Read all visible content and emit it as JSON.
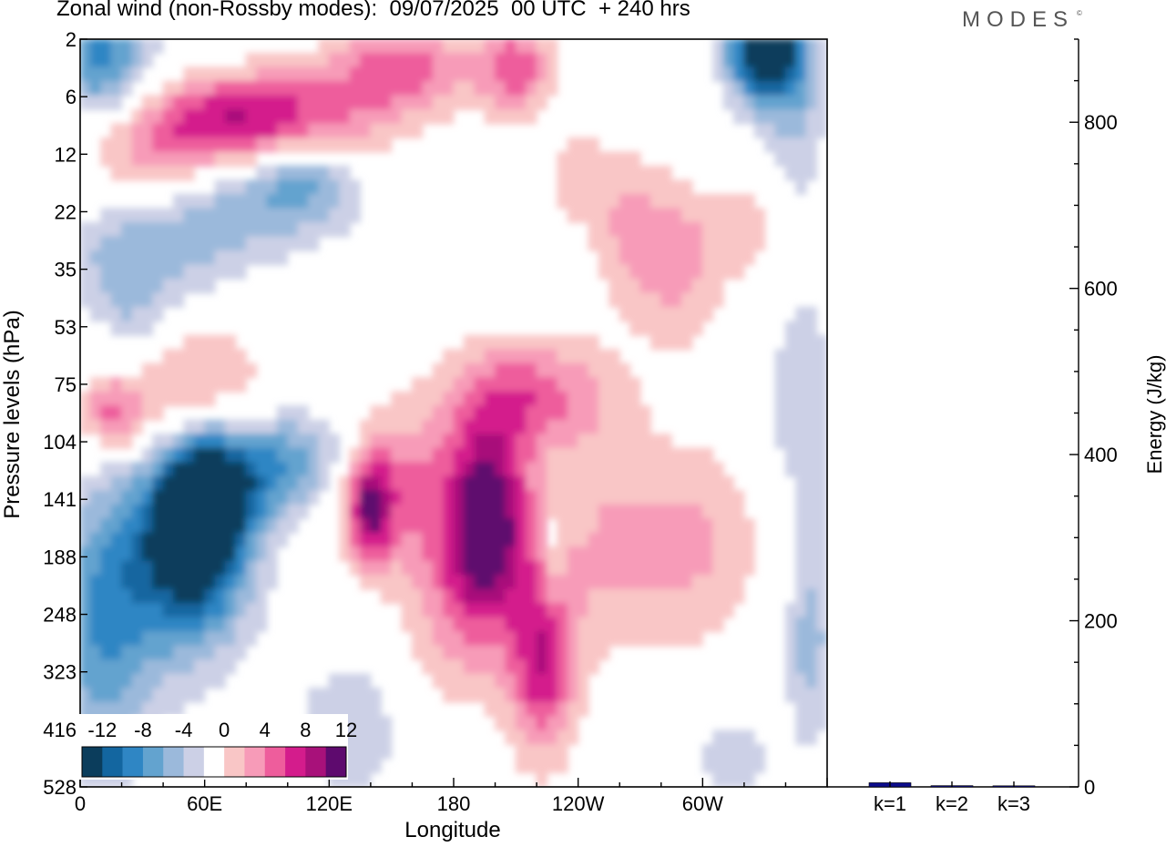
{
  "header": {
    "title": "Zonal wind (non-Rossby modes):  09/07/2025  00 UTC  + 240 hrs",
    "brand": "MODES",
    "brand_mark": "©"
  },
  "chart_data": [
    {
      "type": "heatmap",
      "title": "Zonal wind (non-Rossby modes):  09/07/2025  00 UTC  + 240 hrs",
      "xlabel": "Longitude",
      "ylabel": "Pressure levels (hPa)",
      "x_ticks": [
        "0",
        "60E",
        "120E",
        "180",
        "120W",
        "60W"
      ],
      "x_range_deg": [
        0,
        360
      ],
      "y_ticks": [
        "2",
        "6",
        "12",
        "22",
        "35",
        "53",
        "75",
        "104",
        "141",
        "188",
        "248",
        "323",
        "416",
        "528"
      ],
      "colorbar": {
        "labels": [
          "-12",
          "-8",
          "-4",
          "0",
          "4",
          "8",
          "12"
        ],
        "levels": [
          -14,
          -12,
          -10,
          -8,
          -6,
          -4,
          -2,
          2,
          4,
          6,
          8,
          10,
          12,
          14
        ],
        "colors": [
          "#0b3d5c",
          "#1366a0",
          "#2f86c4",
          "#63a3cf",
          "#9bb9db",
          "#ccd0e6",
          "#ffffff",
          "#f9c6c6",
          "#f79bb8",
          "#ee5d9c",
          "#d41c8c",
          "#a8117a",
          "#5e0a6e"
        ]
      },
      "features": [
        {
          "name": "easterly core",
          "lon": 57,
          "level": "141",
          "value": -14
        },
        {
          "name": "easterly belt",
          "lon_from": 0,
          "lon_to": 80,
          "level_from": "6",
          "level_to": "35",
          "value": -6
        },
        {
          "name": "westerly band",
          "lon_from": 30,
          "lon_to": 100,
          "level_from": "6",
          "level_to": "12",
          "value": 10
        },
        {
          "name": "westerly core",
          "lon": 197,
          "level": "141",
          "value": 12
        },
        {
          "name": "westerly column",
          "lon": 223,
          "level": "323",
          "value": 8
        },
        {
          "name": "westerly column",
          "lon": 140,
          "level": "141",
          "value": 8
        },
        {
          "name": "easterly cap",
          "lon": 330,
          "level": "2",
          "value": -14
        }
      ]
    },
    {
      "type": "bar",
      "ylabel": "Energy (J/kg)",
      "categories": [
        "k=1",
        "k=2",
        "k=3"
      ],
      "values": [
        5,
        1.5,
        0.5
      ],
      "ylim": [
        0,
        900
      ],
      "y_ticks": [
        "0",
        "200",
        "400",
        "600",
        "800"
      ],
      "bar_color": "#0d0d8c"
    }
  ]
}
